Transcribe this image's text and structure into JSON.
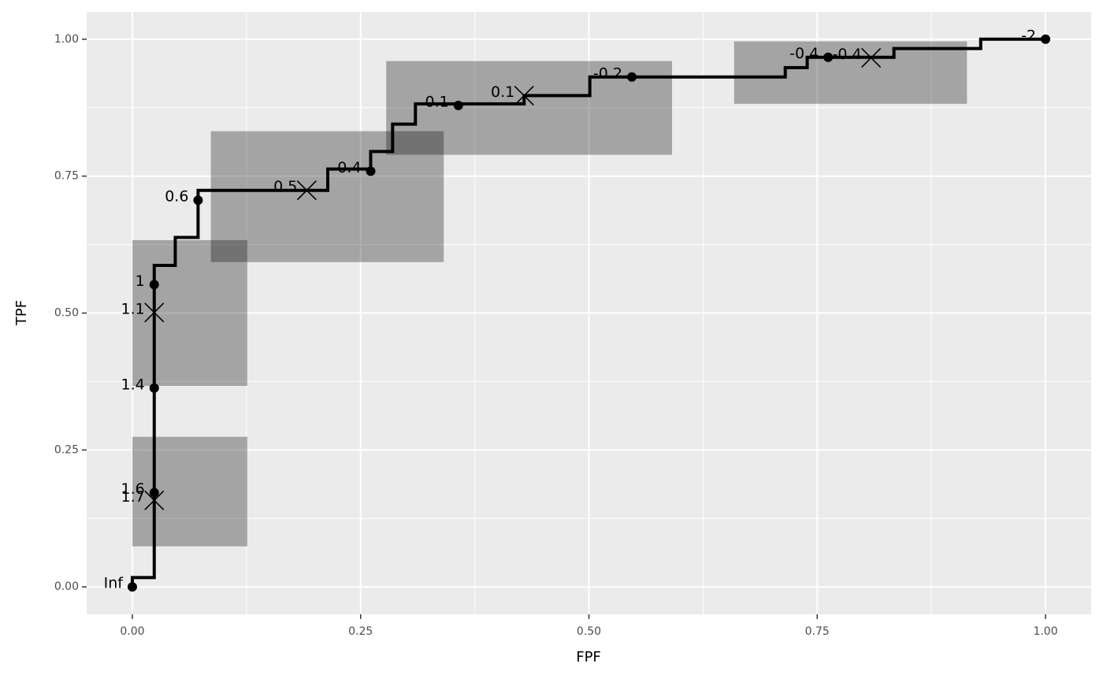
{
  "chart_data": {
    "type": "roc",
    "xlabel": "FPF",
    "ylabel": "TPF",
    "xlim": [
      -0.05,
      1.05
    ],
    "ylim": [
      -0.05,
      1.05
    ],
    "xticks": [
      {
        "value": 0,
        "label": "0.00"
      },
      {
        "value": 0.25,
        "label": "0.25"
      },
      {
        "value": 0.5,
        "label": "0.50"
      },
      {
        "value": 0.75,
        "label": "0.75"
      },
      {
        "value": 1,
        "label": "1.00"
      }
    ],
    "yticks": [
      {
        "value": 0,
        "label": "0.00"
      },
      {
        "value": 0.25,
        "label": "0.25"
      },
      {
        "value": 0.5,
        "label": "0.50"
      },
      {
        "value": 0.75,
        "label": "0.75"
      },
      {
        "value": 1,
        "label": "1.00"
      }
    ],
    "xminor": [
      0.125,
      0.375,
      0.625,
      0.875
    ],
    "yminor": [
      0.125,
      0.375,
      0.625,
      0.875
    ],
    "grid": true,
    "color": "#000000",
    "path": {
      "x": [
        0,
        0,
        0.024,
        0.024,
        0.047,
        0.047,
        0.072,
        0.072,
        0.214,
        0.214,
        0.261,
        0.261,
        0.285,
        0.285,
        0.31,
        0.31,
        0.429,
        0.429,
        0.501,
        0.501,
        0.715,
        0.715,
        0.739,
        0.739,
        0.834,
        0.834,
        0.929,
        0.929,
        1
      ],
      "values": [
        0,
        0.017,
        0.017,
        0.587,
        0.587,
        0.638,
        0.638,
        0.724,
        0.724,
        0.763,
        0.763,
        0.795,
        0.795,
        0.845,
        0.845,
        0.882,
        0.882,
        0.897,
        0.897,
        0.931,
        0.931,
        0.948,
        0.948,
        0.967,
        0.967,
        0.983,
        0.983,
        1,
        1
      ]
    },
    "cutoffs": {
      "x": [
        0,
        0.024,
        0.024,
        0.024,
        0.072,
        0.261,
        0.357,
        0.547,
        0.762,
        1
      ],
      "values": [
        0,
        0.172,
        0.363,
        0.552,
        0.706,
        0.759,
        0.879,
        0.931,
        0.967,
        1
      ],
      "labels": [
        "Inf",
        "1.6",
        "1.4",
        "1",
        "0.6",
        "0.4",
        "0.1",
        "-0.2",
        "-0.4",
        "-2"
      ]
    },
    "regions": [
      {
        "x": 0.024,
        "y": 0.158,
        "label": "1.7",
        "fpf": [
          0,
          0.126
        ],
        "tpf": [
          0.074,
          0.274
        ]
      },
      {
        "x": 0.024,
        "y": 0.501,
        "label": "1.1",
        "fpf": [
          0,
          0.126
        ],
        "tpf": [
          0.367,
          0.633
        ]
      },
      {
        "x": 0.191,
        "y": 0.724,
        "label": "0.5",
        "fpf": [
          0.086,
          0.341
        ],
        "tpf": [
          0.593,
          0.832
        ]
      },
      {
        "x": 0.429,
        "y": 0.897,
        "label": "0.1",
        "fpf": [
          0.278,
          0.591
        ],
        "tpf": [
          0.789,
          0.96
        ]
      },
      {
        "x": 0.809,
        "y": 0.966,
        "label": "-0.4",
        "fpf": [
          0.659,
          0.914
        ],
        "tpf": [
          0.882,
          0.996
        ]
      }
    ]
  }
}
